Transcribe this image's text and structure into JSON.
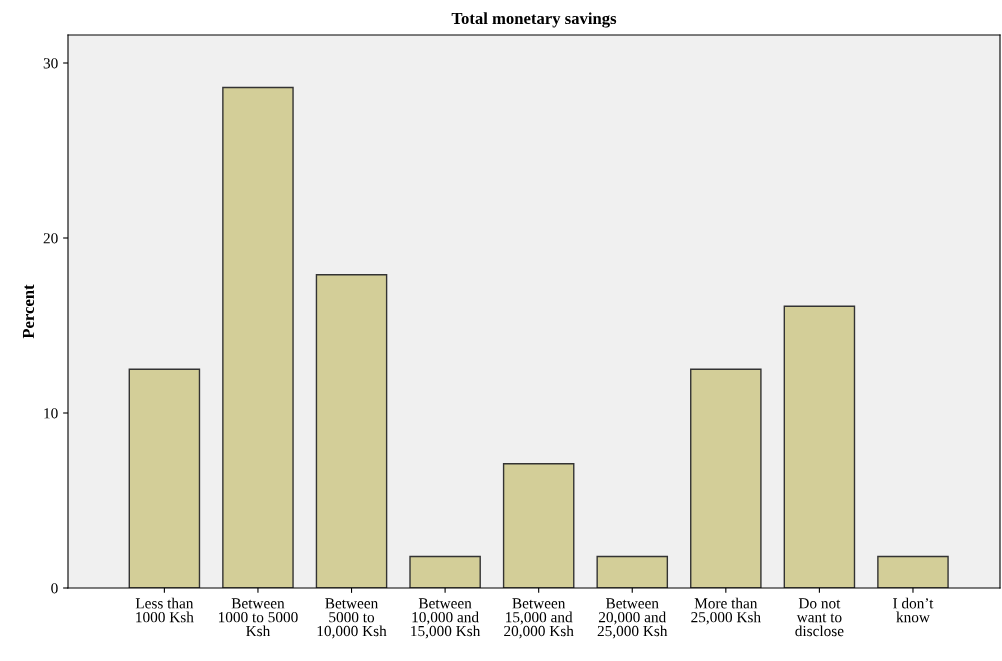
{
  "chart_data": {
    "type": "bar",
    "title": "Total monetary savings",
    "ylabel": "Percent",
    "categories": [
      "Less than\n1000 Ksh",
      "Between\n1000 to 5000\nKsh",
      "Between\n5000 to\n10,000 Ksh",
      "Between\n10,000 and\n15,000 Ksh",
      "Between\n15,000 and\n20,000 Ksh",
      "Between\n20,000 and\n25,000 Ksh",
      "More than\n25,000 Ksh",
      "Do not\nwant to\ndisclose",
      "I don’t\nknow"
    ],
    "values": [
      12.5,
      28.6,
      17.9,
      1.8,
      7.1,
      1.8,
      12.5,
      16.1,
      1.8
    ],
    "color": "#d3ce98",
    "ylim": [
      0,
      31.6
    ],
    "yticks": [
      0,
      10,
      20,
      30
    ],
    "grid": false
  }
}
